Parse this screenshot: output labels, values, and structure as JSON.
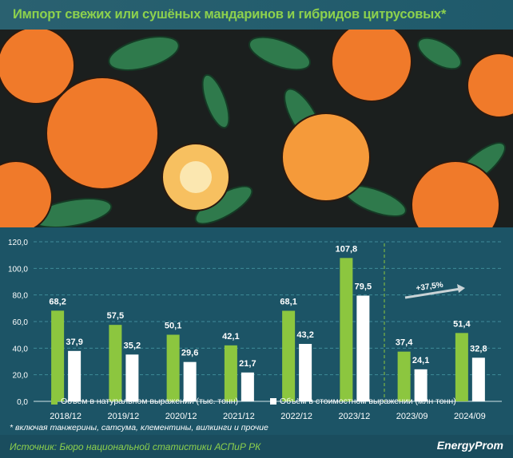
{
  "title": "Импорт свежих или сушёных мандаринов и гибридов цитрусовых*",
  "note": "* включая танжерины, сатсума, клементины, вилкинги и прочие",
  "source": "Источник: Бюро национальной статистики АСПиР РК",
  "logo": "EnergyProm",
  "colors": {
    "green": "#8cc63f",
    "white": "#ffffff",
    "background": "#1c5466",
    "title": "#8dd14d"
  },
  "chart_data": {
    "type": "bar",
    "categories": [
      "2018/12",
      "2019/12",
      "2020/12",
      "2021/12",
      "2022/12",
      "2023/12",
      "2023/09",
      "2024/09"
    ],
    "series": [
      {
        "name": "Объём в натуральном выражении (тыс. тонн)",
        "color": "#8cc63f",
        "values": [
          68.2,
          57.5,
          50.1,
          42.1,
          68.1,
          107.8,
          37.4,
          51.4
        ]
      },
      {
        "name": "Объём в стоимостном выражении (млн тонн)",
        "color": "#ffffff",
        "values": [
          37.9,
          35.2,
          29.6,
          21.7,
          43.2,
          79.5,
          24.1,
          32.8
        ]
      }
    ],
    "value_labels": [
      [
        "68,2",
        "57,5",
        "50,1",
        "42,1",
        "68,1",
        "107,8",
        "37,4",
        "51,4"
      ],
      [
        "37,9",
        "35,2",
        "29,6",
        "21,7",
        "43,2",
        "79,5",
        "24,1",
        "32,8"
      ]
    ],
    "yticks": [
      "0,0",
      "20,0",
      "40,0",
      "60,0",
      "80,0",
      "100,0",
      "120,0"
    ],
    "ylim": [
      0,
      120
    ],
    "grid": true,
    "legend": "bottom",
    "annotation": "+37,5%"
  }
}
